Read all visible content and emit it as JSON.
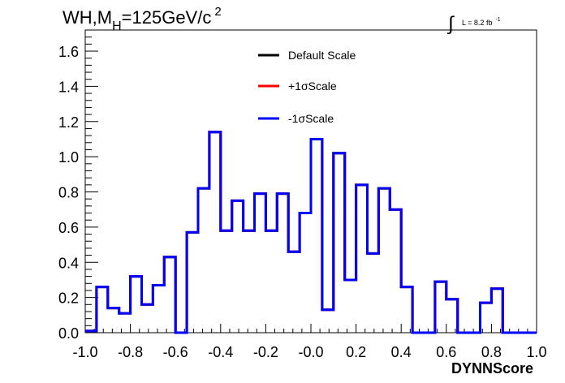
{
  "chart_data": {
    "type": "line",
    "title_main": "WH,M",
    "title_sub": "H",
    "title_rest": "=125GeV/c",
    "title_sup": "2",
    "lumi_symbol": "∫",
    "lumi_text": "L = 8.2 fb",
    "lumi_sup": "-1",
    "xlabel": "DYNNScore",
    "ylabel": "",
    "xlim": [
      -1.0,
      1.0
    ],
    "ylim": [
      0.0,
      1.72
    ],
    "x_ticks": [
      "-1.0",
      "-0.8",
      "-0.6",
      "-0.4",
      "-0.2",
      "-0.0",
      "0.2",
      "0.4",
      "0.6",
      "0.8",
      "1.0"
    ],
    "y_ticks": [
      "0.0",
      "0.2",
      "0.4",
      "0.6",
      "0.8",
      "1.0",
      "1.2",
      "1.4",
      "1.6"
    ],
    "grid": false,
    "legend_position": "top-center",
    "bin_edges_range": [
      -1.0,
      1.0
    ],
    "n_bins": 40,
    "series": [
      {
        "name": "Default Scale",
        "color": "#000000",
        "values": [
          0.01,
          0.26,
          0.14,
          0.11,
          0.32,
          0.16,
          0.27,
          0.43,
          0.0,
          0.57,
          0.82,
          1.14,
          0.58,
          0.75,
          0.58,
          0.79,
          0.58,
          0.79,
          0.46,
          0.68,
          1.1,
          0.13,
          1.02,
          0.3,
          0.84,
          0.45,
          0.82,
          0.7,
          0.26,
          0.0,
          0.0,
          0.29,
          0.19,
          0.0,
          0.0,
          0.17,
          0.25,
          0.0,
          0.0,
          0.0
        ]
      },
      {
        "name": "+1σScale",
        "color": "#ff0000",
        "values": [
          0.01,
          0.26,
          0.14,
          0.11,
          0.32,
          0.16,
          0.27,
          0.43,
          0.0,
          0.57,
          0.82,
          1.14,
          0.58,
          0.75,
          0.58,
          0.79,
          0.58,
          0.79,
          0.46,
          0.68,
          1.1,
          0.13,
          1.02,
          0.3,
          0.84,
          0.45,
          0.82,
          0.7,
          0.26,
          0.0,
          0.0,
          0.29,
          0.19,
          0.0,
          0.0,
          0.17,
          0.25,
          0.0,
          0.0,
          0.0
        ]
      },
      {
        "name": "-1σScale",
        "color": "#0000ff",
        "values": [
          0.01,
          0.26,
          0.14,
          0.11,
          0.32,
          0.16,
          0.27,
          0.43,
          0.0,
          0.57,
          0.82,
          1.14,
          0.58,
          0.75,
          0.58,
          0.79,
          0.58,
          0.79,
          0.46,
          0.68,
          1.1,
          0.13,
          1.02,
          0.3,
          0.84,
          0.45,
          0.82,
          0.7,
          0.26,
          0.0,
          0.0,
          0.29,
          0.19,
          0.0,
          0.0,
          0.17,
          0.25,
          0.0,
          0.0,
          0.0
        ]
      }
    ]
  }
}
